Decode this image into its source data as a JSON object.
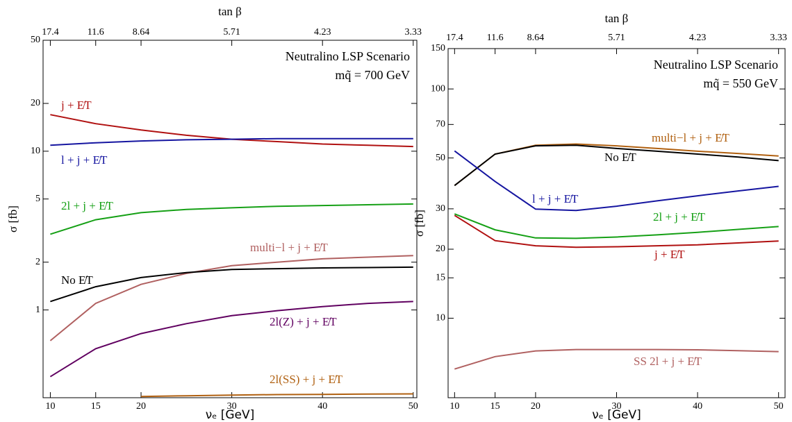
{
  "chart_data": [
    {
      "type": "line",
      "x_label": "νₑ [GeV]",
      "y_label": "σ [fb]",
      "x2_label": "tan β",
      "annotations": [
        "Neutralino LSP Scenario",
        "mq̃ = 700 GeV"
      ],
      "x": [
        10,
        15,
        20,
        25,
        30,
        35,
        40,
        45,
        50
      ],
      "xlim": [
        9.2,
        50.4
      ],
      "xticks": [
        10,
        15,
        20,
        30,
        40,
        50
      ],
      "x2ticks": [
        17.4,
        11.6,
        8.64,
        5.71,
        4.23,
        3.33
      ],
      "ylim": [
        0.28,
        50
      ],
      "yticks": [
        1,
        2,
        5,
        10,
        20,
        50
      ],
      "log_y": true,
      "series": [
        {
          "name": "j + E̸T",
          "color": "#b01010",
          "values": [
            17,
            14.9,
            13.6,
            12.6,
            11.9,
            11.5,
            11.1,
            10.9,
            10.7
          ]
        },
        {
          "name": "l + j + E̸T",
          "color": "#1515a0",
          "values": [
            10.9,
            11.3,
            11.6,
            11.8,
            11.9,
            12,
            12,
            12,
            12
          ]
        },
        {
          "name": "2l + j + E̸T",
          "color": "#15a015",
          "values": [
            3.0,
            3.7,
            4.1,
            4.3,
            4.4,
            4.5,
            4.55,
            4.6,
            4.65
          ]
        },
        {
          "name": "multi−l + j + E̸T",
          "color": "#b06060",
          "values": [
            0.64,
            1.1,
            1.45,
            1.7,
            1.9,
            2.0,
            2.1,
            2.15,
            2.2
          ]
        },
        {
          "name": "No E̸T",
          "color": "#000000",
          "values": [
            1.13,
            1.4,
            1.6,
            1.72,
            1.8,
            1.82,
            1.84,
            1.85,
            1.86
          ]
        },
        {
          "name": "2l(Z) + j + E̸T",
          "color": "#600060",
          "values": [
            0.38,
            0.57,
            0.71,
            0.82,
            0.92,
            0.99,
            1.05,
            1.1,
            1.13
          ]
        },
        {
          "name": "2l(SS) + j + E̸T",
          "color": "#b06010",
          "values": [
            null,
            null,
            0.285,
            0.288,
            0.291,
            0.293,
            0.294,
            0.295,
            0.296
          ]
        }
      ]
    },
    {
      "type": "line",
      "x_label": "νₑ [GeV]",
      "y_label": "σ [fb]",
      "x2_label": "tan β",
      "annotations": [
        "Neutralino LSP Scenario",
        "mq̃ = 550 GeV"
      ],
      "x": [
        10,
        15,
        20,
        25,
        30,
        35,
        40,
        45,
        50
      ],
      "xlim": [
        9.2,
        50.8
      ],
      "xticks": [
        10,
        15,
        20,
        30,
        40,
        50
      ],
      "x2ticks": [
        17.4,
        11.6,
        8.64,
        5.71,
        4.23,
        3.33
      ],
      "ylim": [
        4.5,
        150
      ],
      "yticks": [
        10,
        15,
        20,
        30,
        50,
        70,
        100,
        150
      ],
      "log_y": true,
      "series": [
        {
          "name": "multi−l + j + E̸T",
          "color": "#b06010",
          "values": [
            37.9,
            52,
            56.8,
            57.5,
            56.5,
            55,
            53.5,
            52.3,
            51
          ]
        },
        {
          "name": "No E̸T",
          "color": "#000000",
          "values": [
            37.9,
            52,
            56.5,
            56.8,
            55,
            53.5,
            52,
            50.5,
            48.7
          ]
        },
        {
          "name": "l + j + E̸T",
          "color": "#1515a0",
          "values": [
            53.7,
            39.5,
            29.9,
            29.5,
            30.8,
            32.5,
            34.2,
            35.9,
            37.6
          ]
        },
        {
          "name": "2l + j + E̸T",
          "color": "#15a015",
          "values": [
            28.5,
            24.3,
            22.4,
            22.3,
            22.6,
            23.1,
            23.7,
            24.4,
            25.1
          ]
        },
        {
          "name": "j + E̸T",
          "color": "#b01010",
          "values": [
            28.1,
            21.8,
            20.7,
            20.4,
            20.5,
            20.7,
            20.9,
            21.3,
            21.7
          ]
        },
        {
          "name": "SS 2l + j + E̸T",
          "color": "#b06060",
          "values": [
            6.0,
            6.8,
            7.2,
            7.3,
            7.3,
            7.3,
            7.28,
            7.22,
            7.15
          ]
        }
      ]
    }
  ]
}
